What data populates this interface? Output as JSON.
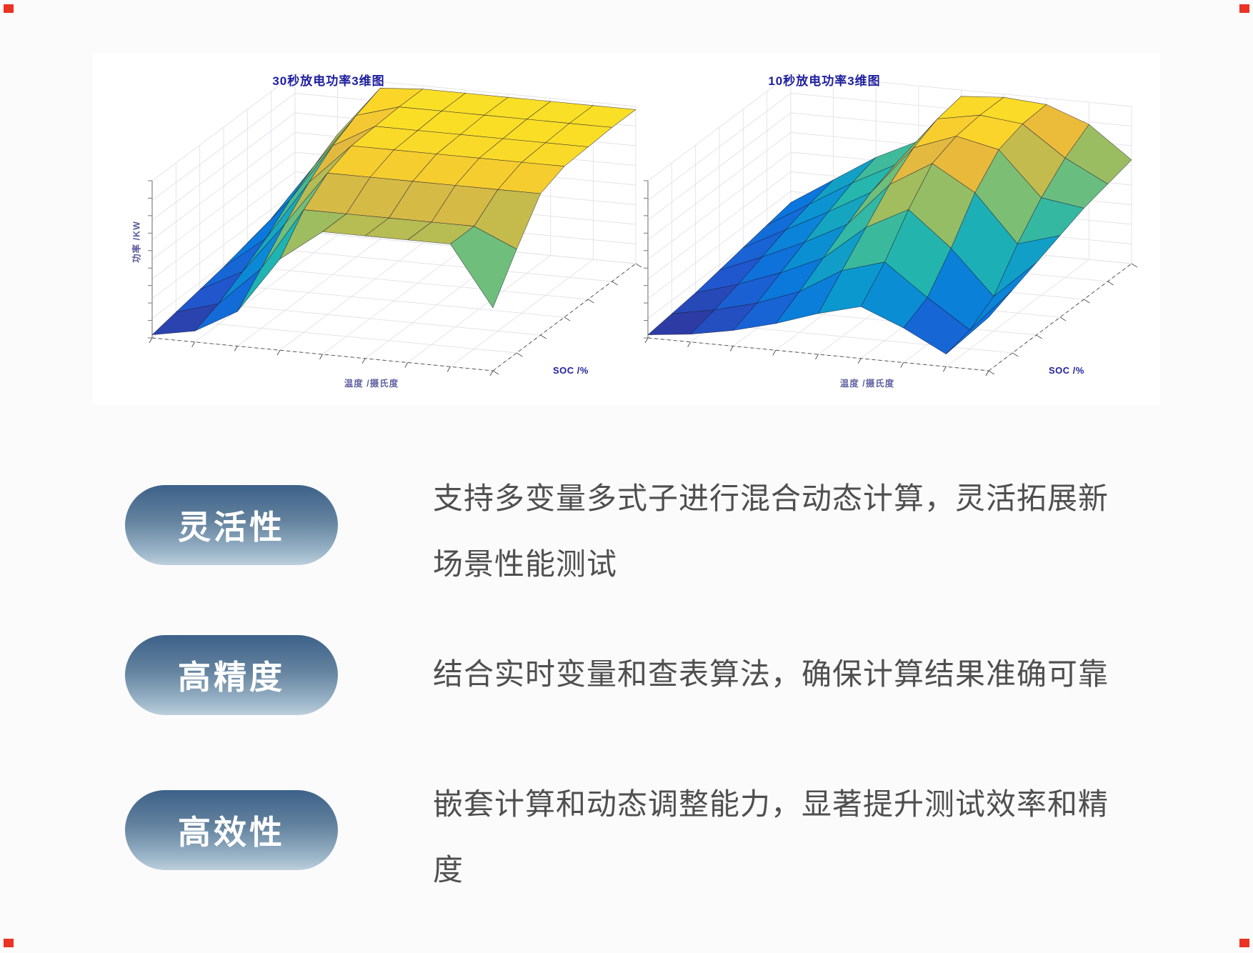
{
  "page": {
    "background": "#fbfbfb",
    "panel_background": "#ffffff"
  },
  "colors": {
    "chart_title": "#1e1e9e",
    "axis_label": "#3c3c8c",
    "pill_gradient_top": "#3d6189",
    "pill_gradient_bottom": "#bdcfdc",
    "pill_text": "#ffffff",
    "description_text": "#4f4f4f",
    "corner_marker": "#ea3323"
  },
  "chart_data": [
    {
      "type": "surface",
      "title": "30秒放电功率3维图",
      "xlabel": "温度 /摄氏度",
      "ylabel": "SOC /%",
      "zlabel": "功率 /KW",
      "colormap": "parula",
      "grid": "rows = SOC (front to back), cols = temperature (left to right), z normalized 0-1 (no numeric tick labels visible)",
      "z": [
        [
          0.02,
          0.07,
          0.22,
          0.58,
          0.78,
          0.78,
          0.78,
          0.78,
          0.4
        ],
        [
          0.05,
          0.13,
          0.38,
          0.78,
          0.78,
          0.78,
          0.78,
          0.78,
          0.66
        ],
        [
          0.08,
          0.22,
          0.55,
          0.9,
          0.9,
          0.9,
          0.9,
          0.9,
          0.9
        ],
        [
          0.11,
          0.32,
          0.7,
          0.96,
          0.96,
          0.96,
          0.96,
          0.96,
          0.96
        ],
        [
          0.15,
          0.45,
          0.82,
          0.97,
          0.97,
          0.97,
          0.97,
          0.97,
          0.97
        ],
        [
          0.19,
          0.55,
          0.9,
          0.98,
          0.98,
          0.98,
          0.98,
          0.98,
          0.98
        ],
        [
          0.23,
          0.64,
          0.96,
          0.98,
          0.98,
          0.98,
          0.98,
          0.98,
          0.98
        ]
      ]
    },
    {
      "type": "surface",
      "title": "10秒放电功率3维图",
      "xlabel": "温度 /摄氏度",
      "ylabel": "SOC /%",
      "zlabel": "",
      "colormap": "parula",
      "grid": "rows = SOC (front to back), cols = temperature (left to right), z normalized 0-1 (no numeric tick labels visible)",
      "z": [
        [
          0.02,
          0.05,
          0.1,
          0.17,
          0.26,
          0.33,
          0.22,
          0.08,
          0.34
        ],
        [
          0.04,
          0.09,
          0.16,
          0.26,
          0.42,
          0.5,
          0.3,
          0.12,
          0.4
        ],
        [
          0.06,
          0.14,
          0.24,
          0.36,
          0.58,
          0.72,
          0.5,
          0.22,
          0.46
        ],
        [
          0.09,
          0.2,
          0.32,
          0.46,
          0.74,
          0.9,
          0.74,
          0.44,
          0.52
        ],
        [
          0.12,
          0.26,
          0.4,
          0.55,
          0.86,
          0.96,
          0.9,
          0.62,
          0.58
        ],
        [
          0.15,
          0.31,
          0.47,
          0.61,
          0.93,
          0.98,
          0.95,
          0.76,
          0.62
        ],
        [
          0.18,
          0.35,
          0.52,
          0.65,
          0.96,
          0.98,
          0.96,
          0.86,
          0.66
        ]
      ]
    }
  ],
  "features": [
    {
      "label": "灵活性",
      "description": "支持多变量多式子进行混合动态计算，灵活拓展新场景性能测试"
    },
    {
      "label": "高精度",
      "description": "结合实时变量和查表算法，确保计算结果准确可靠"
    },
    {
      "label": "高效性",
      "description": "嵌套计算和动态调整能力，显著提升测试效率和精度"
    }
  ]
}
